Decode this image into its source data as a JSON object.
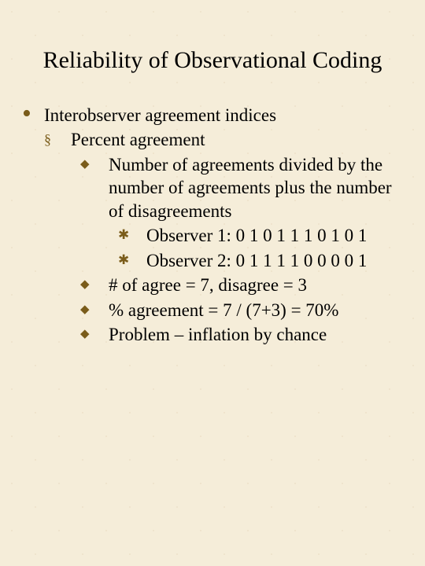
{
  "title": "Reliability of Observational Coding",
  "bullets": {
    "dot": "•",
    "square": "§",
    "diamond": "◆",
    "asterisk": "✱"
  },
  "colors": {
    "background": "#f5edd9",
    "bullet": "#7a5c1a",
    "text": "#000000"
  },
  "typography": {
    "title_fontsize": 30,
    "body_fontsize": 23,
    "font_family": "Times New Roman"
  },
  "lvl1": {
    "text": "Interobserver agreement indices"
  },
  "lvl2": {
    "text": "Percent agreement"
  },
  "lvl3": {
    "item1": "Number of agreements divided by the number of agreements plus the number of disagreements",
    "item2": "#  of agree = 7, disagree = 3",
    "item3": "% agreement = 7 / (7+3) = 70%",
    "item4": "Problem – inflation by chance"
  },
  "lvl4": {
    "obs1": "Observer 1: 0 1 0 1 1 1 0 1 0 1",
    "obs2": "Observer 2: 0 1 1 1 1 0 0 0 0 1"
  }
}
